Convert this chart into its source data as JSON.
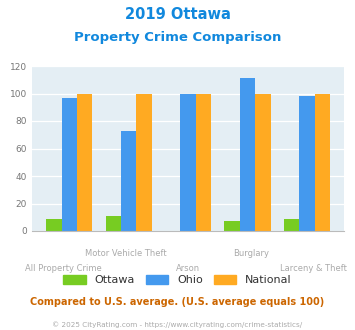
{
  "title_line1": "2019 Ottawa",
  "title_line2": "Property Crime Comparison",
  "categories": [
    "All Property Crime",
    "Motor Vehicle Theft",
    "Arson",
    "Burglary",
    "Larceny & Theft"
  ],
  "x_labels_top": [
    "",
    "Motor Vehicle Theft",
    "",
    "Burglary",
    ""
  ],
  "x_labels_bottom": [
    "All Property Crime",
    "",
    "Arson",
    "",
    "Larceny & Theft"
  ],
  "ottawa": [
    9,
    11,
    0,
    7,
    9
  ],
  "ohio": [
    97,
    73,
    100,
    111,
    98
  ],
  "national": [
    100,
    100,
    100,
    100,
    100
  ],
  "ottawa_color": "#77cc22",
  "ohio_color": "#4499ee",
  "national_color": "#ffaa22",
  "ylim": [
    0,
    120
  ],
  "yticks": [
    0,
    20,
    40,
    60,
    80,
    100,
    120
  ],
  "title_color": "#1188dd",
  "background_color": "#e4eef4",
  "note_text": "Compared to U.S. average. (U.S. average equals 100)",
  "footer_text": "© 2025 CityRating.com - https://www.cityrating.com/crime-statistics/",
  "note_color": "#cc6600",
  "footer_color": "#aaaaaa",
  "legend_labels": [
    "Ottawa",
    "Ohio",
    "National"
  ]
}
